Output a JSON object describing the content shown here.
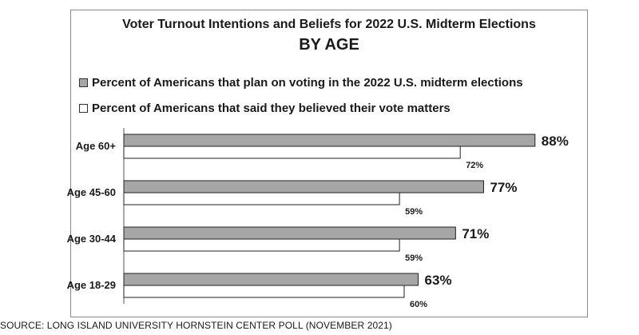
{
  "chart_data": {
    "type": "bar",
    "orientation": "horizontal",
    "title": "Voter Turnout Intentions and Beliefs for 2022 U.S. Midterm Elections",
    "subtitle": "BY AGE",
    "categories": [
      "Age 60+",
      "Age 45-60",
      "Age 30-44",
      "Age 18-29"
    ],
    "series": [
      {
        "name": "Percent of Americans that plan on voting in the 2022 U.S. midterm elections",
        "values": [
          88,
          77,
          71,
          63
        ],
        "labels": [
          "88%",
          "77%",
          "71%",
          "63%"
        ],
        "color": "#a6a6a6"
      },
      {
        "name": "Percent of Americans that said they believed their vote matters",
        "values": [
          72,
          59,
          59,
          60
        ],
        "labels": [
          "72%",
          "59%",
          "59%",
          "60%"
        ],
        "color": "#ffffff"
      }
    ],
    "xlim": [
      0,
      100
    ],
    "grid": false,
    "legend_position": "top-left"
  },
  "source": "SOURCE: LONG ISLAND UNIVERSITY HORNSTEIN CENTER POLL (NOVEMBER 2021)"
}
